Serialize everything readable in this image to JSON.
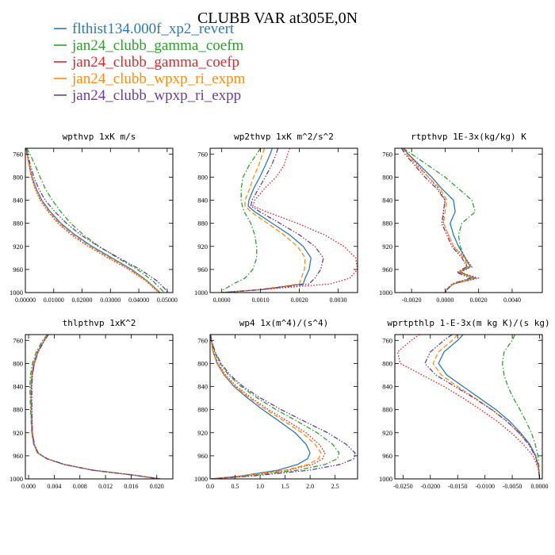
{
  "title": "CLUBB VAR at305E,0N",
  "legend": [
    {
      "label": "flthist134.000f_xp2_revert",
      "color": "#2a7ab8",
      "dash": "solid"
    },
    {
      "label": "jan24_clubb_gamma_coefm",
      "color": "#2ca02c",
      "dash": "dashdot"
    },
    {
      "label": "jan24_clubb_gamma_coefp",
      "color": "#e3262a",
      "dash": "dotted"
    },
    {
      "label": "jan24_clubb_wpxp_ri_expm",
      "color": "#ff8c0a",
      "dash": "dashed"
    },
    {
      "label": "jan24_clubb_wpxp_ri_expp",
      "color": "#6a3d9a",
      "dash": "dashdotdot"
    }
  ],
  "chart_data": [
    {
      "type": "line",
      "title": "wpthvp  1xK m/s",
      "xlim": [
        0,
        0.052
      ],
      "ylim": [
        1000,
        750
      ],
      "xticks": [
        0,
        0.01,
        0.02,
        0.03,
        0.04,
        0.05
      ],
      "xtick_labels": [
        "0.00000",
        "0.01000",
        "0.02000",
        "0.03000",
        "0.04000",
        "0.05000"
      ],
      "yticks": [
        760,
        800,
        840,
        880,
        920,
        960,
        1000
      ],
      "ytick_labels": [
        "760",
        "800",
        "840",
        "880",
        "920",
        "960",
        "1000"
      ],
      "y": [
        750,
        760,
        780,
        800,
        820,
        840,
        860,
        880,
        900,
        920,
        940,
        960,
        980,
        1000
      ],
      "series": [
        {
          "values": [
            0.0003,
            0.0006,
            0.0014,
            0.0024,
            0.0038,
            0.0058,
            0.0088,
            0.0125,
            0.0175,
            0.0235,
            0.0305,
            0.0375,
            0.043,
            0.0475
          ]
        },
        {
          "values": [
            0.0005,
            0.0016,
            0.0035,
            0.0052,
            0.007,
            0.0095,
            0.0125,
            0.016,
            0.0205,
            0.026,
            0.0325,
            0.0395,
            0.045,
            0.049
          ]
        },
        {
          "values": [
            0.0003,
            0.0006,
            0.0013,
            0.0021,
            0.0034,
            0.0052,
            0.008,
            0.0115,
            0.0162,
            0.0222,
            0.0292,
            0.0365,
            0.0425,
            0.047
          ]
        },
        {
          "values": [
            0.0003,
            0.0006,
            0.0013,
            0.0022,
            0.0036,
            0.0055,
            0.0084,
            0.012,
            0.0168,
            0.0228,
            0.0298,
            0.037,
            0.0428,
            0.0472
          ]
        },
        {
          "values": [
            0.0003,
            0.0008,
            0.0018,
            0.003,
            0.0047,
            0.007,
            0.0104,
            0.0145,
            0.0195,
            0.0258,
            0.033,
            0.0405,
            0.0465,
            0.0505
          ]
        }
      ]
    },
    {
      "type": "line",
      "title": "wp2thvp  1xK m^2/s^2",
      "xlim": [
        -0.0003,
        0.0035
      ],
      "ylim": [
        1000,
        750
      ],
      "xticks": [
        0,
        0.001,
        0.002,
        0.003
      ],
      "xtick_labels": [
        "0.0000",
        "0.0010",
        "0.0020",
        "0.0030"
      ],
      "yticks": [
        760,
        800,
        840,
        880,
        920,
        960,
        1000
      ],
      "ytick_labels": [
        "760",
        "800",
        "840",
        "880",
        "920",
        "960",
        "1000"
      ],
      "y": [
        750,
        760,
        780,
        800,
        820,
        840,
        850,
        860,
        880,
        900,
        920,
        940,
        960,
        975,
        985,
        995,
        1000
      ],
      "series": [
        {
          "values": [
            0.0013,
            0.00125,
            0.00112,
            0.00098,
            0.00082,
            0.0007,
            0.00068,
            0.00085,
            0.0013,
            0.00175,
            0.0021,
            0.0023,
            0.00225,
            0.00215,
            0.0021,
            0.001,
            0.0
          ]
        },
        {
          "values": [
            0.001,
            0.0009,
            0.0007,
            0.00055,
            0.0005,
            0.0005,
            0.00053,
            0.00058,
            0.00075,
            0.00085,
            0.0009,
            0.0009,
            0.0008,
            0.0006,
            0.0003,
            5e-05,
            0.0
          ]
        },
        {
          "values": [
            0.00175,
            0.0017,
            0.0016,
            0.0014,
            0.0011,
            0.00085,
            0.0008,
            0.00115,
            0.00195,
            0.00265,
            0.00315,
            0.00345,
            0.0035,
            0.0033,
            0.0028,
            0.001,
            0.0
          ]
        },
        {
          "values": [
            0.0011,
            0.00105,
            0.00095,
            0.00082,
            0.00072,
            0.0006,
            0.0006,
            0.00075,
            0.00118,
            0.0016,
            0.00195,
            0.00215,
            0.00213,
            0.00205,
            0.002,
            0.00095,
            0.0
          ]
        },
        {
          "values": [
            0.00145,
            0.0014,
            0.00128,
            0.00112,
            0.00095,
            0.00078,
            0.00075,
            0.00098,
            0.0015,
            0.002,
            0.0024,
            0.00262,
            0.00255,
            0.0024,
            0.00225,
            0.001,
            0.0
          ]
        }
      ]
    },
    {
      "type": "line",
      "title": "rtpthvp  1E-3x(kg/kg) K",
      "xlim": [
        -0.003,
        0.0058
      ],
      "ylim": [
        1000,
        750
      ],
      "xticks": [
        -0.002,
        0,
        0.002,
        0.004
      ],
      "xtick_labels": [
        "-0.0020",
        "0.0000",
        "0.0020",
        "0.0040"
      ],
      "yticks": [
        760,
        800,
        840,
        880,
        920,
        960,
        1000
      ],
      "ytick_labels": [
        "760",
        "800",
        "840",
        "880",
        "920",
        "960",
        "1000"
      ],
      "y": [
        750,
        760,
        780,
        800,
        820,
        840,
        860,
        880,
        900,
        920,
        940,
        955,
        965,
        975,
        985,
        995,
        1000
      ],
      "series": [
        {
          "values": [
            -0.0025,
            -0.0022,
            -0.0015,
            -0.0008,
            -0.0002,
            0.0005,
            0.0006,
            0.0003,
            0.0005,
            0.0008,
            0.0012,
            0.0015,
            0.0008,
            0.0018,
            0.0005,
            0.0001,
            0.0
          ]
        },
        {
          "values": [
            -0.0025,
            -0.002,
            -0.001,
            0.0,
            0.0008,
            0.0016,
            0.0018,
            0.001,
            0.0008,
            0.0009,
            0.0012,
            0.0013,
            0.001,
            0.0016,
            0.0005,
            0.0001,
            0.0
          ]
        },
        {
          "values": [
            -0.0025,
            -0.0022,
            -0.0016,
            -0.001,
            -0.0004,
            0.0,
            -0.0001,
            -0.0001,
            0.0002,
            0.0005,
            0.0012,
            0.0016,
            0.0009,
            0.002,
            0.0005,
            0.0001,
            0.0
          ]
        },
        {
          "values": [
            -0.0026,
            -0.0023,
            -0.0017,
            -0.001,
            -0.0003,
            0.0001,
            0.0,
            -0.0001,
            0.0002,
            0.0005,
            0.0011,
            0.0014,
            0.0008,
            0.0017,
            0.0005,
            0.0001,
            0.0
          ]
        },
        {
          "values": [
            -0.0026,
            -0.0024,
            -0.0018,
            -0.0012,
            -0.0005,
            0.0,
            -0.0001,
            -0.0002,
            0.0001,
            0.0004,
            0.001,
            0.0013,
            0.0007,
            0.0015,
            0.0004,
            0.0001,
            0.0
          ]
        }
      ]
    },
    {
      "type": "line",
      "title": "thlpthvp  1xK^2",
      "xlim": [
        -0.0005,
        0.0225
      ],
      "ylim": [
        1000,
        750
      ],
      "xticks": [
        0,
        0.004,
        0.008,
        0.012,
        0.016,
        0.02
      ],
      "xtick_labels": [
        "0.000",
        "0.004",
        "0.008",
        "0.012",
        "0.016",
        "0.020"
      ],
      "yticks": [
        760,
        800,
        840,
        880,
        920,
        960,
        1000
      ],
      "ytick_labels": [
        "760",
        "800",
        "840",
        "880",
        "920",
        "960",
        "1000"
      ],
      "y": [
        750,
        760,
        780,
        800,
        820,
        840,
        880,
        920,
        940,
        955,
        965,
        975,
        985,
        993,
        1000
      ],
      "series": [
        {
          "values": [
            0.003,
            0.0024,
            0.0014,
            0.0008,
            0.0005,
            0.0004,
            0.0004,
            0.0005,
            0.0008,
            0.0014,
            0.0028,
            0.0055,
            0.01,
            0.016,
            0.0205
          ]
        },
        {
          "values": [
            0.0029,
            0.0022,
            0.0012,
            0.0006,
            0.0003,
            0.0002,
            0.0003,
            0.0005,
            0.0008,
            0.0014,
            0.0028,
            0.0055,
            0.01,
            0.016,
            0.0205
          ]
        },
        {
          "values": [
            0.0031,
            0.0025,
            0.0015,
            0.0009,
            0.0006,
            0.0005,
            0.0005,
            0.0006,
            0.0009,
            0.0015,
            0.0029,
            0.0056,
            0.0101,
            0.0161,
            0.0205
          ]
        },
        {
          "values": [
            0.003,
            0.0024,
            0.0014,
            0.0008,
            0.0005,
            0.0004,
            0.0004,
            0.0005,
            0.0008,
            0.0014,
            0.0028,
            0.0055,
            0.01,
            0.016,
            0.0205
          ]
        },
        {
          "values": [
            0.0031,
            0.0025,
            0.0015,
            0.0009,
            0.0006,
            0.0005,
            0.0005,
            0.0006,
            0.0009,
            0.0015,
            0.0029,
            0.0056,
            0.0101,
            0.0161,
            0.0205
          ]
        }
      ]
    },
    {
      "type": "line",
      "title": "wp4  1x(m^4)/(s^4)",
      "xlim": [
        0,
        2.95
      ],
      "ylim": [
        1000,
        750
      ],
      "xticks": [
        0,
        0.5,
        1.0,
        1.5,
        2.0,
        2.5
      ],
      "xtick_labels": [
        "0.0",
        "0.5",
        "1.0",
        "1.5",
        "2.0",
        "2.5"
      ],
      "yticks": [
        760,
        800,
        840,
        880,
        920,
        960,
        1000
      ],
      "ytick_labels": [
        "760",
        "800",
        "840",
        "880",
        "920",
        "960",
        "1000"
      ],
      "y": [
        750,
        760,
        780,
        800,
        820,
        840,
        860,
        880,
        900,
        920,
        940,
        955,
        965,
        975,
        985,
        995,
        1000
      ],
      "series": [
        {
          "values": [
            0.01,
            0.02,
            0.06,
            0.14,
            0.28,
            0.48,
            0.75,
            1.05,
            1.38,
            1.7,
            1.92,
            2.0,
            1.95,
            1.75,
            1.35,
            0.6,
            0.02
          ]
        },
        {
          "values": [
            0.01,
            0.03,
            0.09,
            0.2,
            0.37,
            0.62,
            0.95,
            1.32,
            1.74,
            2.14,
            2.45,
            2.58,
            2.55,
            2.3,
            1.75,
            0.75,
            0.02
          ]
        },
        {
          "values": [
            0.01,
            0.02,
            0.07,
            0.16,
            0.31,
            0.53,
            0.83,
            1.17,
            1.55,
            1.92,
            2.18,
            2.3,
            2.25,
            2.05,
            1.55,
            0.65,
            0.02
          ]
        },
        {
          "values": [
            0.01,
            0.02,
            0.06,
            0.15,
            0.29,
            0.5,
            0.79,
            1.12,
            1.48,
            1.84,
            2.1,
            2.22,
            2.17,
            1.96,
            1.5,
            0.63,
            0.02
          ]
        },
        {
          "values": [
            0.01,
            0.03,
            0.1,
            0.22,
            0.4,
            0.66,
            1.01,
            1.42,
            1.88,
            2.35,
            2.72,
            2.9,
            2.88,
            2.6,
            1.98,
            0.85,
            0.02
          ]
        }
      ]
    },
    {
      "type": "line",
      "title": "wprtpthlp  1-E-3x(m kg K)/(s kg)",
      "xlim": [
        -0.0265,
        0.0005
      ],
      "ylim": [
        1000,
        750
      ],
      "xticks": [
        -0.025,
        -0.02,
        -0.015,
        -0.01,
        -0.005,
        0
      ],
      "xtick_labels": [
        "-0.0250",
        "-0.0200",
        "-0.0150",
        "-0.0100",
        "-0.0050",
        "0.0000"
      ],
      "yticks": [
        760,
        800,
        840,
        880,
        920,
        960,
        1000
      ],
      "ytick_labels": [
        "760",
        "800",
        "840",
        "880",
        "920",
        "960",
        "1000"
      ],
      "y": [
        750,
        760,
        780,
        800,
        820,
        840,
        860,
        880,
        900,
        920,
        940,
        960,
        980,
        1000
      ],
      "series": [
        {
          "values": [
            -0.014,
            -0.015,
            -0.0175,
            -0.0185,
            -0.017,
            -0.014,
            -0.011,
            -0.008,
            -0.0055,
            -0.0035,
            -0.0018,
            -0.0007,
            -0.0002,
            0.0
          ]
        },
        {
          "values": [
            -0.0045,
            -0.005,
            -0.0065,
            -0.0068,
            -0.0065,
            -0.0058,
            -0.0048,
            -0.0036,
            -0.0025,
            -0.0015,
            -0.0008,
            -0.0003,
            -0.0001,
            0.0
          ]
        },
        {
          "values": [
            -0.022,
            -0.0235,
            -0.026,
            -0.0255,
            -0.0215,
            -0.0175,
            -0.014,
            -0.0108,
            -0.0078,
            -0.0052,
            -0.003,
            -0.0012,
            -0.0003,
            0.0
          ]
        },
        {
          "values": [
            -0.015,
            -0.016,
            -0.0185,
            -0.0195,
            -0.018,
            -0.015,
            -0.0118,
            -0.0087,
            -0.006,
            -0.0038,
            -0.002,
            -0.0008,
            -0.0002,
            0.0
          ]
        },
        {
          "values": [
            -0.016,
            -0.0175,
            -0.02,
            -0.021,
            -0.019,
            -0.0155,
            -0.012,
            -0.0088,
            -0.006,
            -0.0038,
            -0.002,
            -0.0008,
            -0.0002,
            0.0
          ]
        }
      ]
    }
  ]
}
